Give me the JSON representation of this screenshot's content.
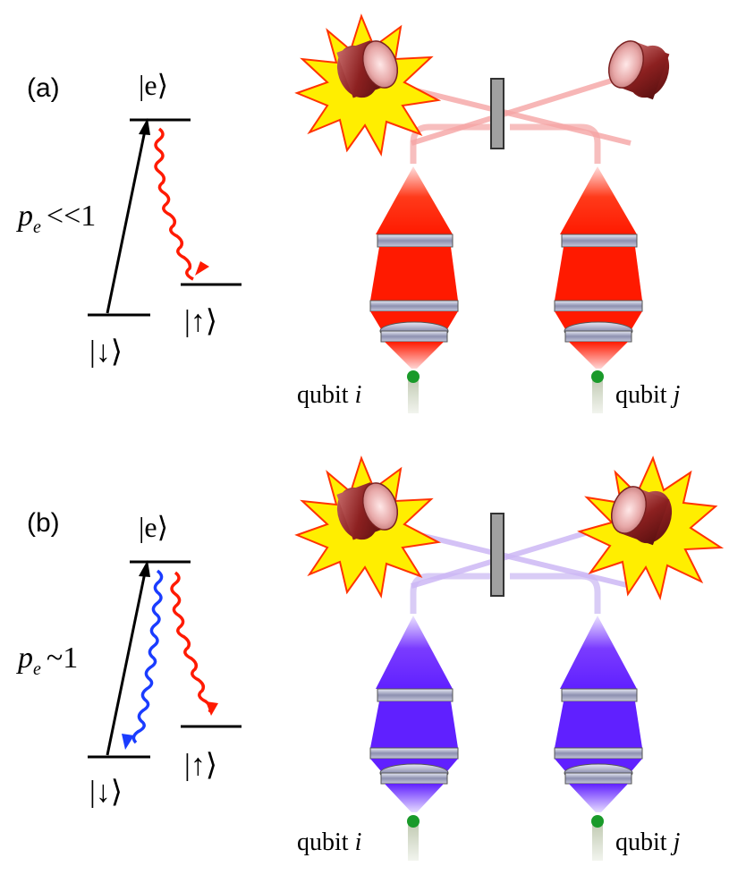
{
  "panels": [
    {
      "id": "a",
      "panel_label": "(a)",
      "excited_state": "|e⟩",
      "lower_left_state": "|↓⟩",
      "lower_right_state": "|↑⟩",
      "probability_symbol": "p",
      "probability_subscript": "e",
      "probability_relation": "<<1",
      "qubit_i_label": "qubit",
      "qubit_i_var": "i",
      "qubit_j_label": "qubit",
      "qubit_j_var": "j",
      "photon_color": "#ff2a00",
      "beam_color": "#f6a5a5",
      "detector_i_clicked": true,
      "detector_j_clicked": false
    },
    {
      "id": "b",
      "panel_label": "(b)",
      "excited_state": "|e⟩",
      "lower_left_state": "|↓⟩",
      "lower_right_state": "|↑⟩",
      "probability_symbol": "p",
      "probability_subscript": "e",
      "probability_relation": "~1",
      "qubit_i_label": "qubit",
      "qubit_i_var": "i",
      "qubit_j_label": "qubit",
      "qubit_j_var": "j",
      "photon_color": "#6a2bff",
      "beam_color": "#cdb8f5",
      "detector_i_clicked": true,
      "detector_j_clicked": true
    }
  ],
  "colors": {
    "level_line": "#000000",
    "red_decay": "#ff1a00",
    "blue_decay": "#1a3cff",
    "detector_body": "#9b2a2a",
    "flash_fill": "#ffee00",
    "flash_stroke": "#ff3300",
    "splitter": "#a0a0a0",
    "ion": "#1a9a2a"
  }
}
